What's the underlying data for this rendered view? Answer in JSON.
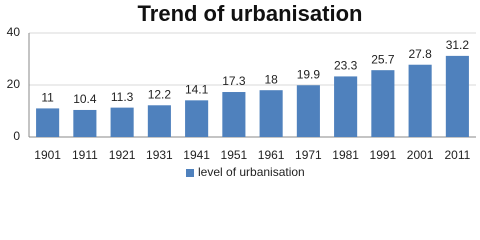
{
  "chart_data": {
    "type": "bar",
    "title": "Trend of urbanisation",
    "categories": [
      "1901",
      "1911",
      "1921",
      "1931",
      "1941",
      "1951",
      "1961",
      "1971",
      "1981",
      "1991",
      "2001",
      "2011"
    ],
    "series": [
      {
        "name": "level of urbanisation",
        "color": "#4f81bd",
        "values": [
          11,
          10.4,
          11.3,
          12.2,
          14.1,
          17.3,
          18,
          19.9,
          23.3,
          25.7,
          27.8,
          31.2
        ]
      }
    ],
    "ylim": [
      0,
      40
    ],
    "yticks": [
      0,
      20,
      40
    ],
    "grid": true,
    "legend": "bottom"
  }
}
